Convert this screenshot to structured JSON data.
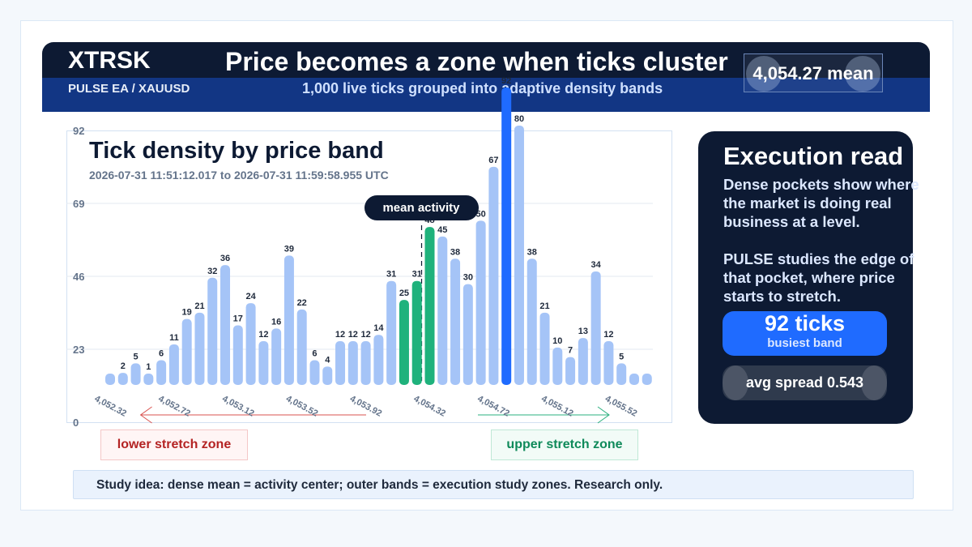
{
  "header": {
    "brand": "XTRSK",
    "pair": "PULSE EA / XAUUSD",
    "headline": "Price becomes a zone when ticks cluster",
    "subline": "1,000 live ticks grouped into adaptive density bands",
    "mean_badge": "4,054.27 mean"
  },
  "chart": {
    "title": "Tick density by price band",
    "subtitle": "2026-07-31 11:51:12.017 to 2026-07-31 11:59:58.955 UTC",
    "mean_label": "mean activity"
  },
  "chart_data": {
    "type": "bar",
    "title": "Tick density by price band",
    "ylim": [
      0,
      92
    ],
    "y_ticks": [
      "0",
      "23",
      "46",
      "69",
      "92"
    ],
    "x_tick_labels": [
      "4,052.32",
      "4,052.72",
      "4,053.12",
      "4,053.52",
      "4,053.92",
      "4,054.32",
      "4,054.72",
      "4,055.12",
      "4,055.52"
    ],
    "values": [
      0,
      2,
      5,
      1,
      6,
      11,
      19,
      21,
      32,
      36,
      17,
      24,
      12,
      16,
      39,
      22,
      6,
      4,
      12,
      12,
      12,
      14,
      31,
      25,
      31,
      48,
      45,
      38,
      30,
      50,
      67,
      92,
      80,
      38,
      21,
      10,
      7,
      13,
      34,
      12,
      5,
      0,
      0
    ],
    "mean_band_index": 25,
    "highlight_bands": [
      23,
      24,
      25
    ],
    "busiest_band_index": 31,
    "grid": true,
    "colors": {
      "bar": "#a5c4f7",
      "highlight": "#1fb27c",
      "busiest": "#1f6bff",
      "grid": "#e3e9f1",
      "label": "#1e293b",
      "axis_tick": "#64748b",
      "lower_zone": "#d9534f",
      "upper_zone": "#2bb07f"
    }
  },
  "side": {
    "title": "Execution read",
    "para1": "Dense pockets show where the market is doing real business at a level.",
    "para2": "PULSE studies the edge of that pocket, where price starts to stretch.",
    "busy_value": "92 ticks",
    "busy_label": "busiest band",
    "spread": "avg spread 0.543"
  },
  "zones": {
    "lower": "lower stretch zone",
    "upper": "upper stretch zone"
  },
  "note": "Study idea: dense mean = activity center; outer bands = execution study zones. Research only."
}
